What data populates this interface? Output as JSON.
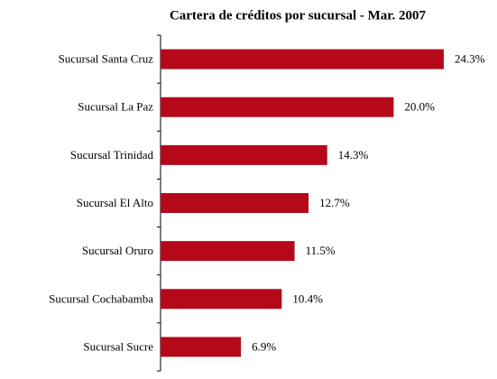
{
  "chart_data": {
    "type": "bar",
    "orientation": "horizontal",
    "title": "Cartera de créditos por sucursal - Mar. 2007",
    "categories": [
      "Sucursal Santa Cruz",
      "Sucursal La Paz",
      "Sucursal Trinidad",
      "Sucursal El Alto",
      "Sucursal Oruro",
      "Sucursal Cochabamba",
      "Sucursal Sucre"
    ],
    "values": [
      24.3,
      20.0,
      14.3,
      12.7,
      11.5,
      10.4,
      6.9
    ],
    "value_labels": [
      "24.3%",
      "20.0%",
      "14.3%",
      "12.7%",
      "11.5%",
      "10.4%",
      "6.9%"
    ],
    "color": "#b5091a"
  }
}
